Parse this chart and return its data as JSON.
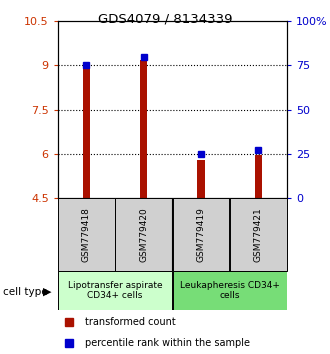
{
  "title": "GDS4079 / 8134339",
  "samples": [
    "GSM779418",
    "GSM779420",
    "GSM779419",
    "GSM779421"
  ],
  "bar_values": [
    8.9,
    9.2,
    5.8,
    5.95
  ],
  "percentile_values": [
    75,
    80,
    25,
    27
  ],
  "ylim_left": [
    4.5,
    10.5
  ],
  "ylim_right": [
    0,
    100
  ],
  "yticks_left": [
    4.5,
    6,
    7.5,
    9,
    10.5
  ],
  "yticks_right": [
    0,
    25,
    50,
    75,
    100
  ],
  "ytick_labels_right": [
    "0",
    "25",
    "50",
    "75",
    "100%"
  ],
  "grid_lines": [
    6,
    7.5,
    9
  ],
  "bar_color": "#aa1100",
  "percentile_color": "#0000cc",
  "bar_baseline": 4.5,
  "group_labels": [
    "Lipotransfer aspirate\nCD34+ cells",
    "Leukapheresis CD34+\ncells"
  ],
  "group_ranges": [
    [
      0,
      2
    ],
    [
      2,
      4
    ]
  ],
  "group_colors": [
    "#ccffcc",
    "#77dd77"
  ],
  "cell_type_label": "cell type",
  "legend_items": [
    "transformed count",
    "percentile rank within the sample"
  ],
  "legend_colors": [
    "#aa1100",
    "#0000cc"
  ],
  "background_color": "#ffffff"
}
